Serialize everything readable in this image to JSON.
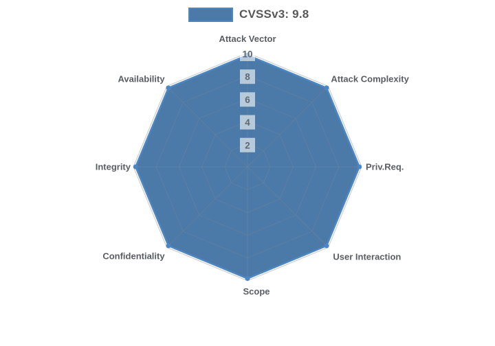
{
  "legend": {
    "label": "CVSSv3: 9.8"
  },
  "chart_data": {
    "type": "radar",
    "title": "CVSSv3: 9.8",
    "legend_entries": [
      "CVSSv3: 9.8"
    ],
    "legend_position": "top-center",
    "axes": [
      "Attack Vector",
      "Attack Complexity",
      "Priv.Req.",
      "User Interaction",
      "Scope",
      "Confidentiality",
      "Integrity",
      "Availability"
    ],
    "series": [
      {
        "name": "CVSSv3: 9.8",
        "values": [
          9.8,
          9.8,
          9.8,
          9.8,
          9.8,
          9.8,
          9.8,
          9.8
        ]
      }
    ],
    "scale": {
      "min": 0,
      "max": 10,
      "ticks": [
        2,
        4,
        6,
        8,
        10
      ]
    },
    "grid": {
      "shape": "polygonal-web",
      "rings": 5,
      "spokes": 8,
      "visible": true
    },
    "colors": {
      "fill": "#4b7aa9",
      "stroke": "#4d87c3",
      "grid_line": "#76839b",
      "tick_box": "rgba(255,255,255,0.6)",
      "tick_text": "#5e6873",
      "axis_label": "#595d62",
      "legend_text": "#575757",
      "background": "#ffffff"
    }
  }
}
